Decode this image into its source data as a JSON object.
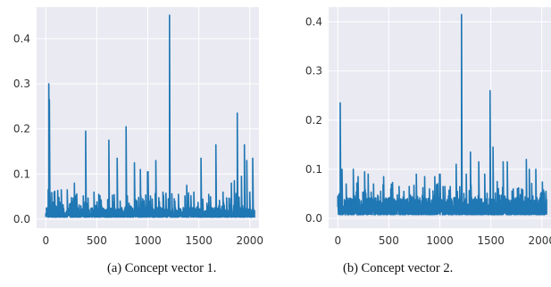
{
  "colors": {
    "line": "#1f77b4",
    "plot_bg": "#eaeaf2",
    "grid": "#ffffff"
  },
  "captions": {
    "a": "(a) Concept vector 1.",
    "b": "(b) Concept vector 2."
  },
  "chart_data": [
    {
      "type": "line",
      "xlim": [
        -90,
        2090
      ],
      "ylim": [
        -0.02,
        0.47
      ],
      "xticks": [
        0,
        500,
        1000,
        1500,
        2000
      ],
      "xtick_labels": [
        "0",
        "500",
        "1000",
        "1500",
        "2000"
      ],
      "yticks": [
        0.0,
        0.1,
        0.2,
        0.3,
        0.4
      ],
      "ytick_labels": [
        "0.0",
        "0.1",
        "0.2",
        "0.3",
        "0.4"
      ],
      "grid": true,
      "n_points": 2048,
      "baseline": 0.015,
      "series": [
        {
          "peaks": [
            {
              "x": 5,
              "y": 0.02
            },
            {
              "x": 22,
              "y": 0.065
            },
            {
              "x": 28,
              "y": 0.3
            },
            {
              "x": 34,
              "y": 0.265
            },
            {
              "x": 40,
              "y": 0.06
            },
            {
              "x": 80,
              "y": 0.06
            },
            {
              "x": 150,
              "y": 0.065
            },
            {
              "x": 210,
              "y": 0.065
            },
            {
              "x": 280,
              "y": 0.08
            },
            {
              "x": 390,
              "y": 0.195
            },
            {
              "x": 470,
              "y": 0.06
            },
            {
              "x": 520,
              "y": 0.055
            },
            {
              "x": 620,
              "y": 0.175
            },
            {
              "x": 700,
              "y": 0.135
            },
            {
              "x": 790,
              "y": 0.205
            },
            {
              "x": 870,
              "y": 0.125
            },
            {
              "x": 930,
              "y": 0.11
            },
            {
              "x": 1000,
              "y": 0.105
            },
            {
              "x": 1080,
              "y": 0.13
            },
            {
              "x": 1150,
              "y": 0.06
            },
            {
              "x": 1210,
              "y": 0.452
            },
            {
              "x": 1300,
              "y": 0.055
            },
            {
              "x": 1380,
              "y": 0.075
            },
            {
              "x": 1450,
              "y": 0.06
            },
            {
              "x": 1520,
              "y": 0.135
            },
            {
              "x": 1600,
              "y": 0.055
            },
            {
              "x": 1670,
              "y": 0.165
            },
            {
              "x": 1740,
              "y": 0.06
            },
            {
              "x": 1820,
              "y": 0.08
            },
            {
              "x": 1850,
              "y": 0.085
            },
            {
              "x": 1880,
              "y": 0.235
            },
            {
              "x": 1920,
              "y": 0.095
            },
            {
              "x": 1950,
              "y": 0.165
            },
            {
              "x": 1970,
              "y": 0.13
            },
            {
              "x": 2000,
              "y": 0.06
            },
            {
              "x": 2030,
              "y": 0.135
            }
          ]
        }
      ]
    },
    {
      "type": "line",
      "xlim": [
        -90,
        2090
      ],
      "ylim": [
        -0.02,
        0.43
      ],
      "xticks": [
        0,
        500,
        1000,
        1500,
        2000
      ],
      "xtick_labels": [
        "0",
        "500",
        "1000",
        "1500",
        "2000"
      ],
      "yticks": [
        0.0,
        0.1,
        0.2,
        0.3,
        0.4
      ],
      "ytick_labels": [
        "0.0",
        "0.1",
        "0.2",
        "0.3",
        "0.4"
      ],
      "grid": true,
      "n_points": 2048,
      "baseline": 0.025,
      "series": [
        {
          "peaks": [
            {
              "x": 10,
              "y": 0.05
            },
            {
              "x": 25,
              "y": 0.235
            },
            {
              "x": 40,
              "y": 0.1
            },
            {
              "x": 80,
              "y": 0.07
            },
            {
              "x": 150,
              "y": 0.1
            },
            {
              "x": 200,
              "y": 0.085
            },
            {
              "x": 260,
              "y": 0.095
            },
            {
              "x": 300,
              "y": 0.09
            },
            {
              "x": 350,
              "y": 0.07
            },
            {
              "x": 450,
              "y": 0.085
            },
            {
              "x": 520,
              "y": 0.06
            },
            {
              "x": 600,
              "y": 0.065
            },
            {
              "x": 650,
              "y": 0.055
            },
            {
              "x": 700,
              "y": 0.065
            },
            {
              "x": 770,
              "y": 0.09
            },
            {
              "x": 850,
              "y": 0.085
            },
            {
              "x": 900,
              "y": 0.06
            },
            {
              "x": 950,
              "y": 0.085
            },
            {
              "x": 1000,
              "y": 0.09
            },
            {
              "x": 1050,
              "y": 0.065
            },
            {
              "x": 1100,
              "y": 0.065
            },
            {
              "x": 1160,
              "y": 0.11
            },
            {
              "x": 1210,
              "y": 0.415
            },
            {
              "x": 1260,
              "y": 0.09
            },
            {
              "x": 1300,
              "y": 0.135
            },
            {
              "x": 1380,
              "y": 0.115
            },
            {
              "x": 1440,
              "y": 0.09
            },
            {
              "x": 1490,
              "y": 0.26
            },
            {
              "x": 1520,
              "y": 0.145
            },
            {
              "x": 1560,
              "y": 0.075
            },
            {
              "x": 1620,
              "y": 0.115
            },
            {
              "x": 1660,
              "y": 0.115
            },
            {
              "x": 1720,
              "y": 0.06
            },
            {
              "x": 1800,
              "y": 0.06
            },
            {
              "x": 1850,
              "y": 0.12
            },
            {
              "x": 1880,
              "y": 0.1
            },
            {
              "x": 1940,
              "y": 0.1
            },
            {
              "x": 1990,
              "y": 0.05
            },
            {
              "x": 2040,
              "y": 0.055
            }
          ]
        }
      ]
    }
  ]
}
